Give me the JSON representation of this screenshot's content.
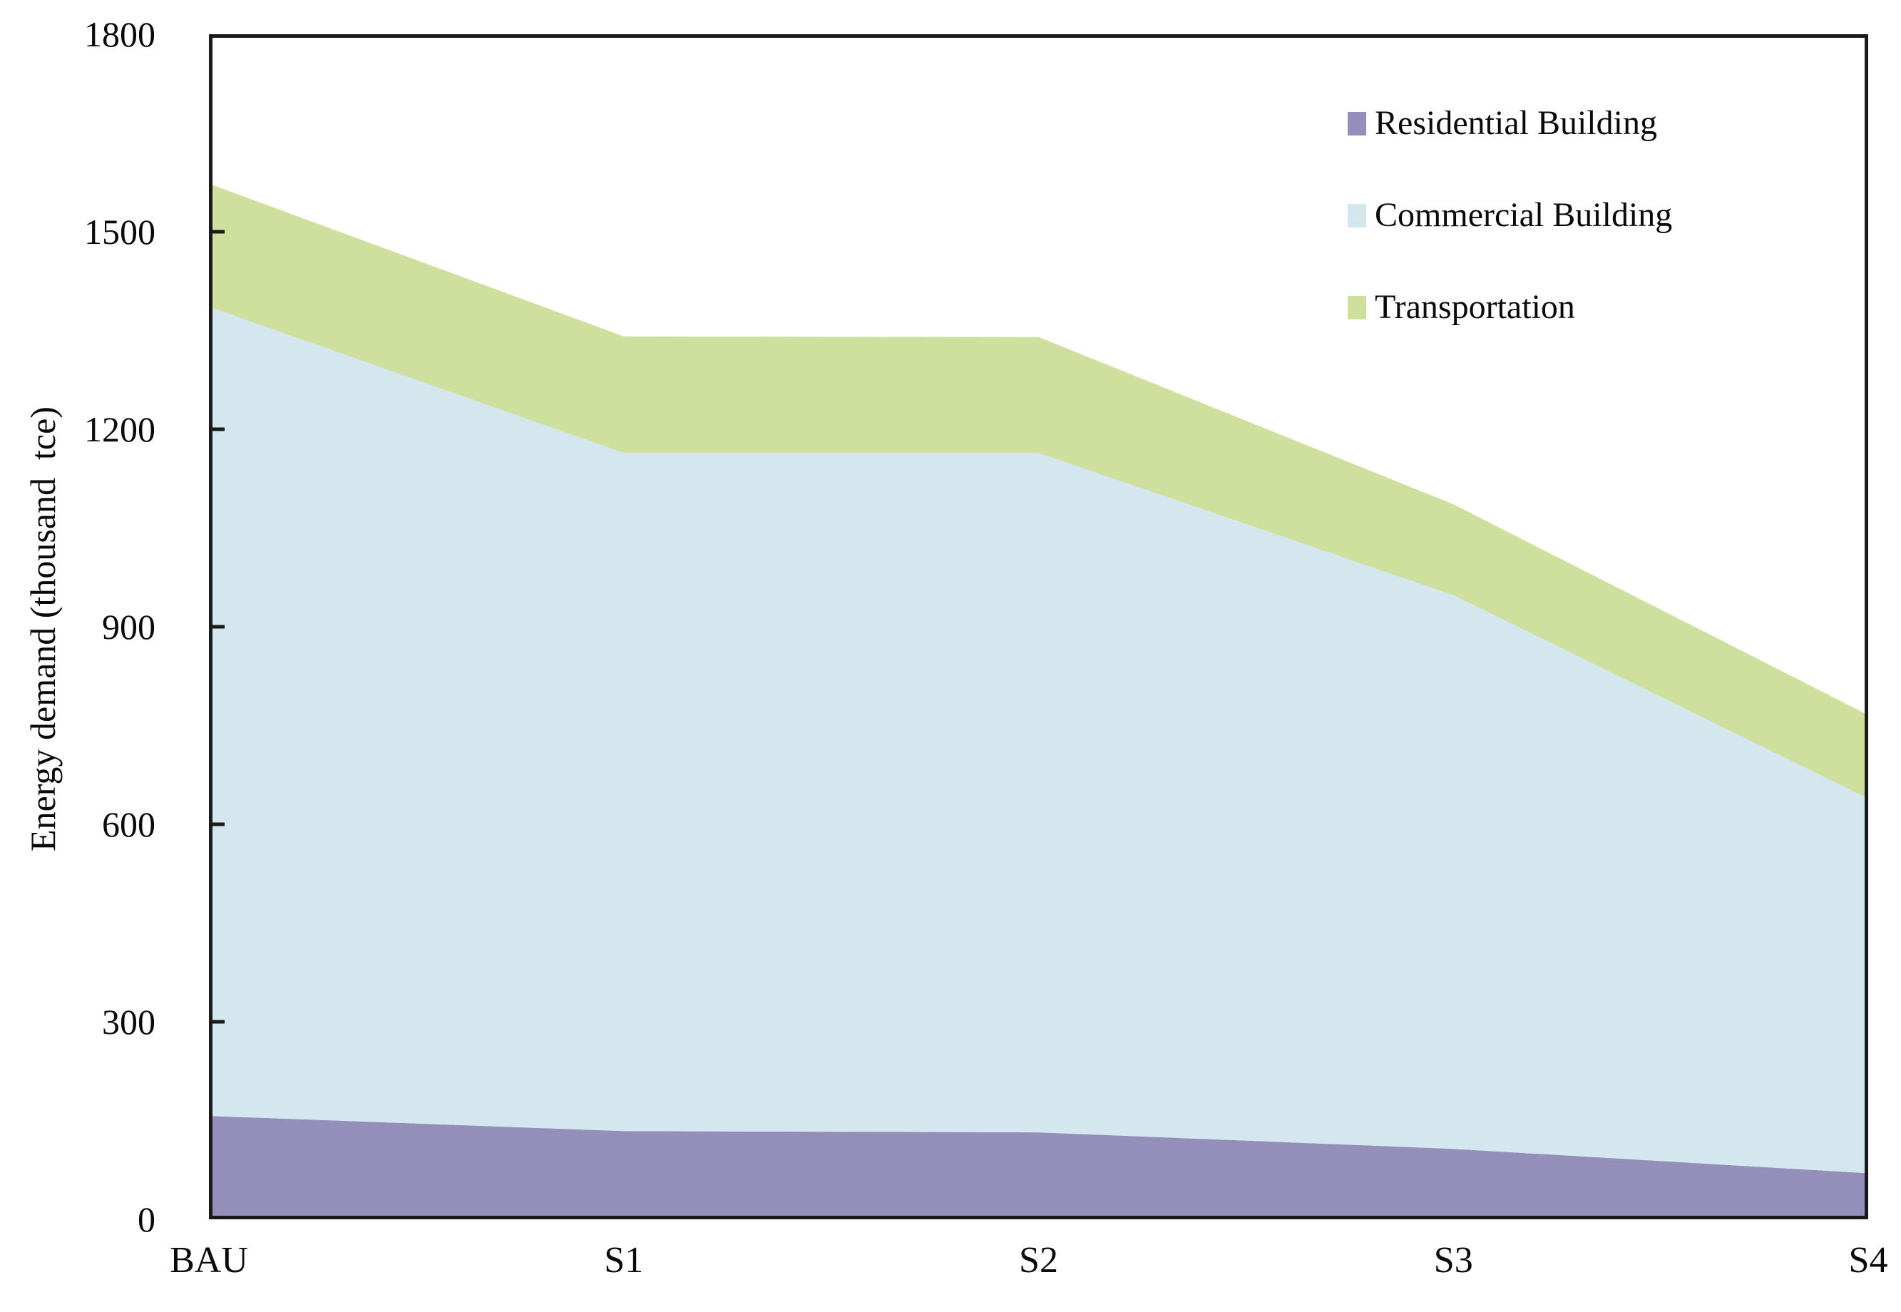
{
  "chart_data": {
    "type": "area",
    "stacked": true,
    "title": "",
    "categories": [
      "BAU",
      "S1",
      "S2",
      "S3",
      "S4"
    ],
    "series": [
      {
        "name": "Residential Building",
        "color": "#948EBA",
        "values": [
          157,
          134,
          132,
          107,
          70
        ]
      },
      {
        "name": "Commercial Building",
        "color": "#D4E7EE",
        "values": [
          1229,
          1030,
          1032,
          841,
          569
        ]
      },
      {
        "name": "Transportation",
        "color": "#CFDF9D",
        "values": [
          187,
          177,
          176,
          138,
          127
        ]
      }
    ],
    "stacked_totals": [
      1573,
      1341,
      1340,
      1086,
      766
    ],
    "xlabel": "",
    "ylabel": "Energy demand (thousand  tce)",
    "ylim": [
      0,
      1800
    ],
    "yticks": [
      0,
      300,
      600,
      900,
      1200,
      1500,
      1800
    ],
    "grid": false,
    "legend_position": "inside-top-right",
    "axis_color": "#1a1a1a",
    "background_color": "#ffffff"
  }
}
